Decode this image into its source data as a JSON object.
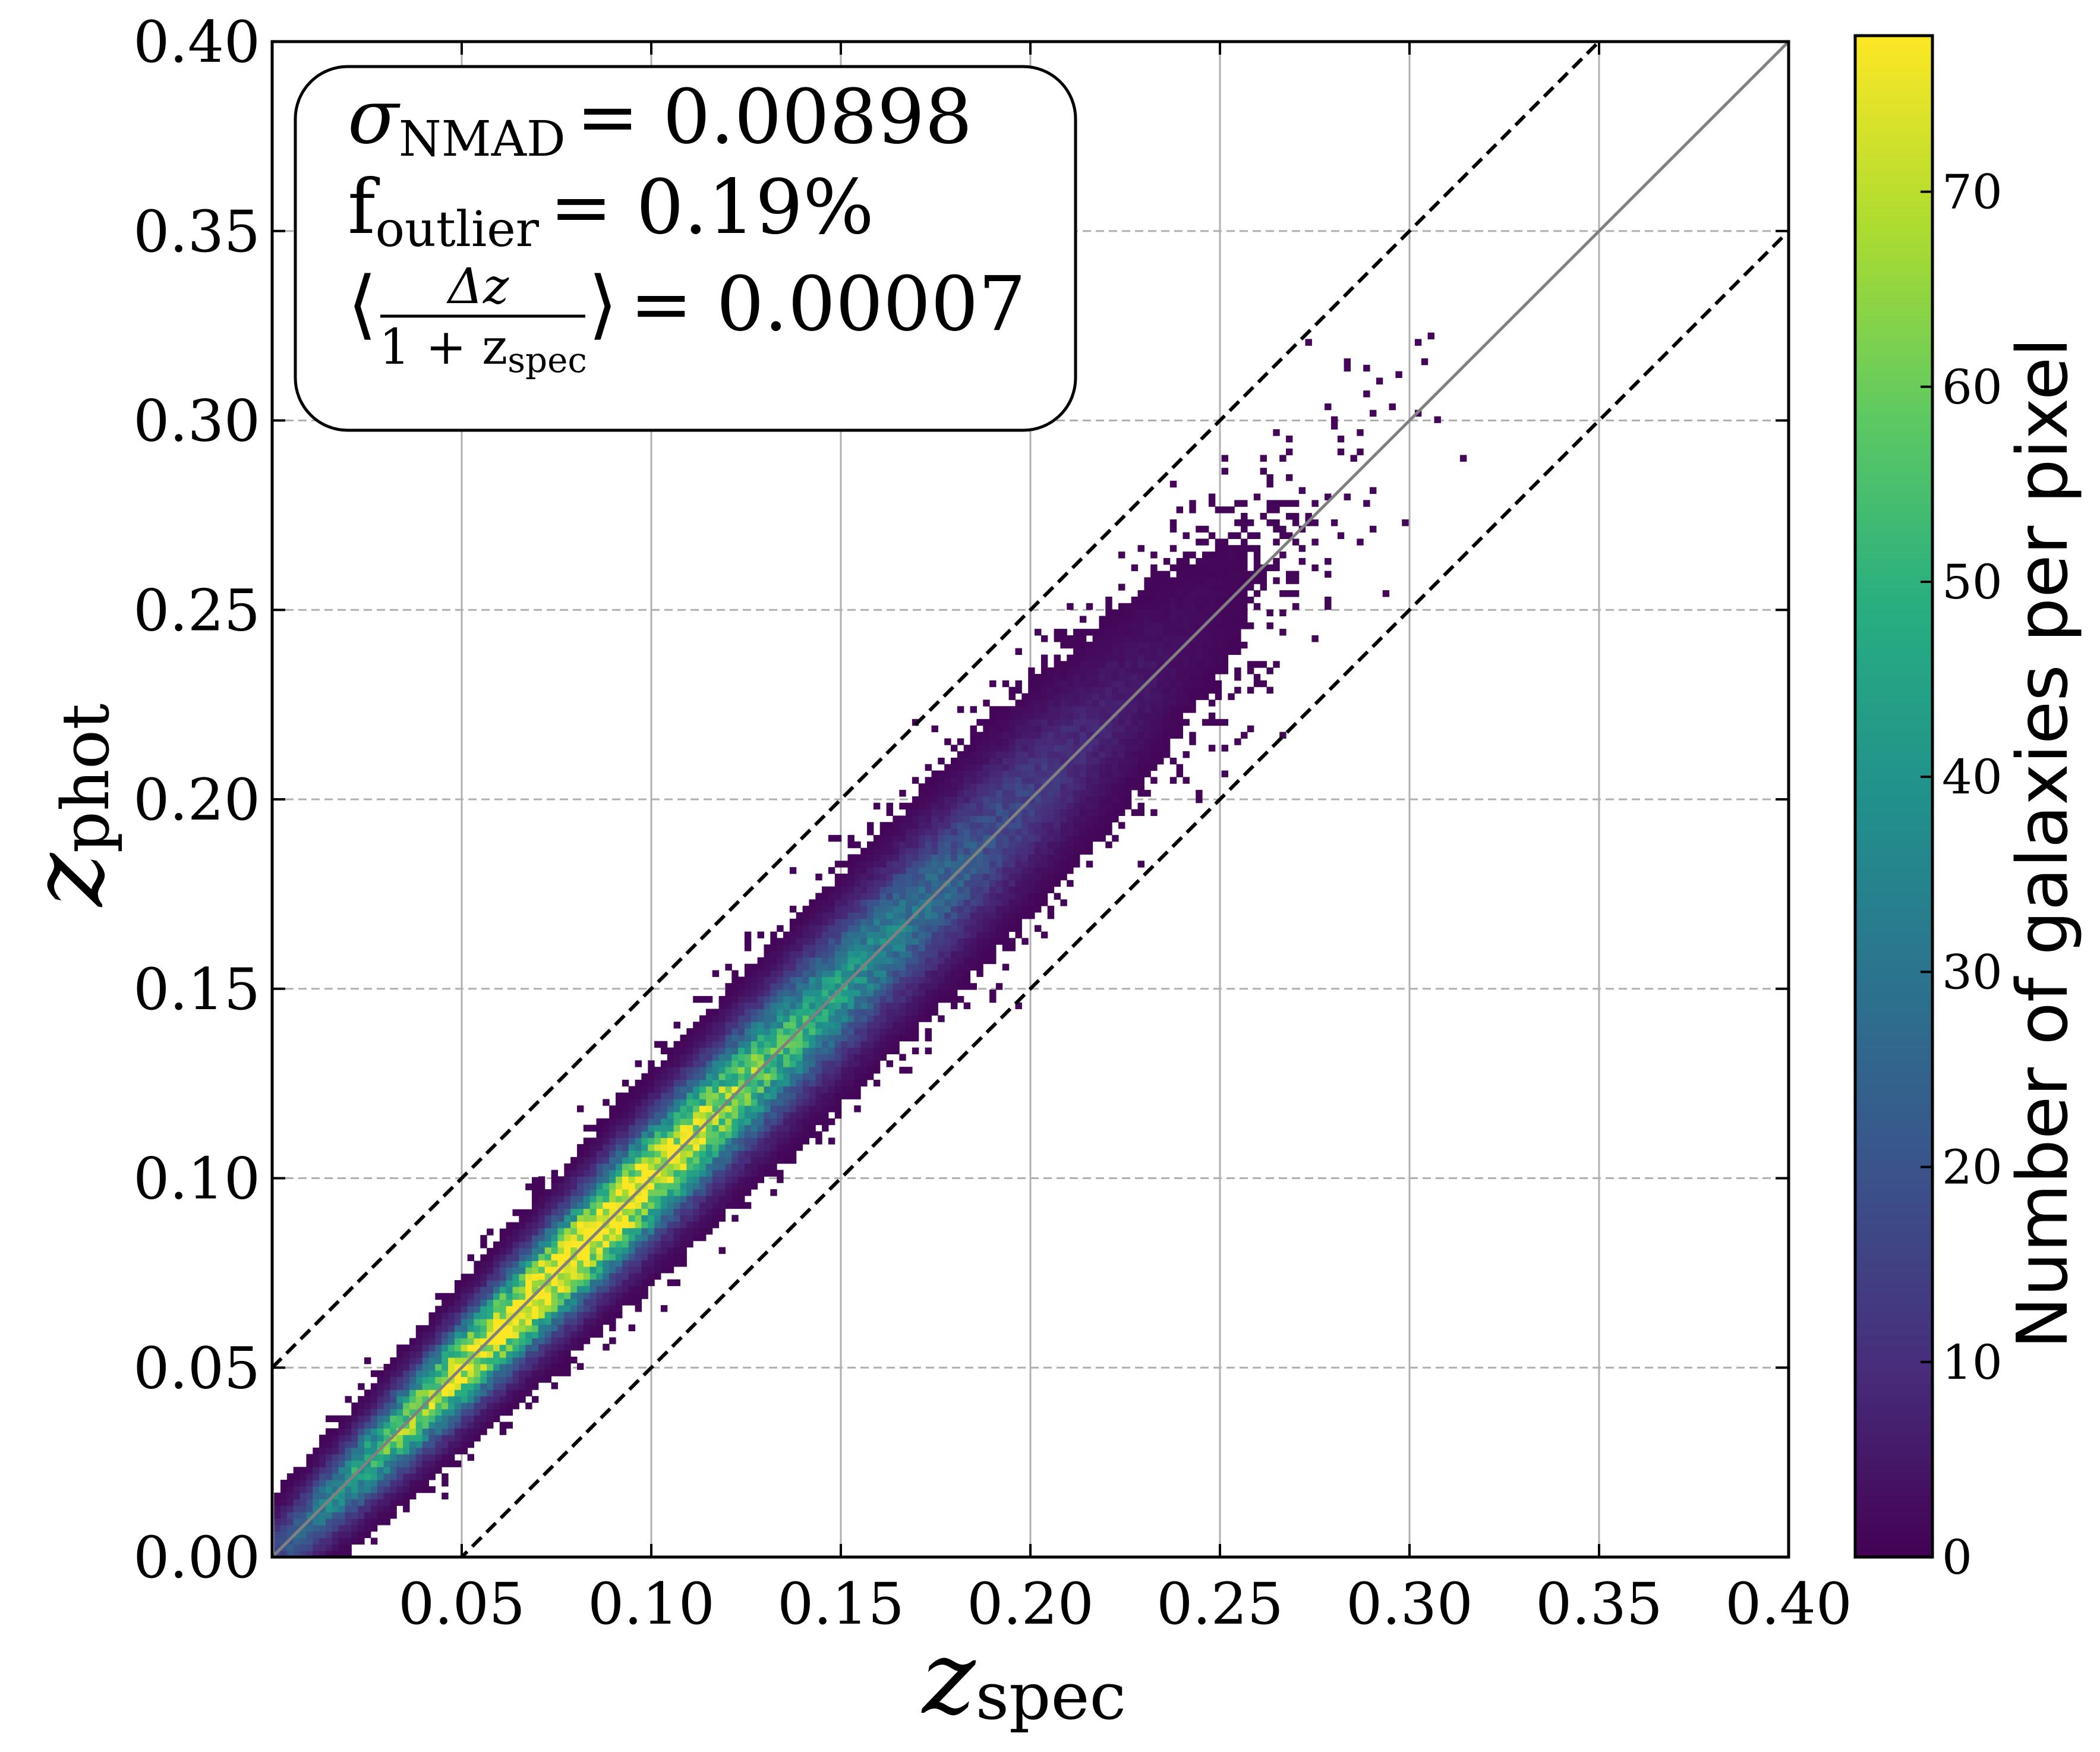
{
  "chart_data": {
    "type": "heatmap",
    "title": "",
    "xlabel": {
      "main": "z",
      "sub": "spec"
    },
    "ylabel": {
      "main": "z",
      "sub": "phot"
    },
    "xlim": [
      0,
      0.4
    ],
    "ylim": [
      0,
      0.4
    ],
    "x_ticks": [
      "0.05",
      "0.10",
      "0.15",
      "0.20",
      "0.25",
      "0.30",
      "0.35",
      "0.40"
    ],
    "y_ticks": [
      "0.00",
      "0.05",
      "0.10",
      "0.15",
      "0.20",
      "0.25",
      "0.30",
      "0.35",
      "0.40"
    ],
    "grid": true,
    "colormap": "viridis",
    "colorbar": {
      "label": "Number of galaxies per pixel",
      "range": [
        0,
        78
      ],
      "ticks": [
        "0",
        "10",
        "20",
        "30",
        "40",
        "50",
        "60",
        "70"
      ]
    },
    "reference_lines": [
      {
        "name": "one-to-one",
        "slope": 1,
        "intercept": 0,
        "style": "solid",
        "color": "#808080"
      },
      {
        "name": "upper-outlier-bound",
        "slope": 1,
        "intercept": 0.05,
        "style": "dashed",
        "color": "#000000"
      },
      {
        "name": "lower-outlier-bound",
        "slope": 1,
        "intercept": -0.05,
        "style": "dashed",
        "color": "#000000"
      }
    ],
    "density_model": {
      "ridge": "z_phot = z_spec",
      "peak_count": 78,
      "peak_at": [
        0.078,
        0.078
      ],
      "scatter": 0.009
    },
    "stats_box": {
      "sigma_nmad": {
        "symbol": "σ",
        "sub": "NMAD",
        "value": "= 0.00898"
      },
      "f_outlier": {
        "symbol": "f",
        "sub": "outlier",
        "value": "= 0.19%"
      },
      "mean_bias": {
        "numerator": "Δz",
        "denominator": "1 + z",
        "den_sub": "spec",
        "value": "= 0.00007"
      }
    },
    "colors": {
      "grid": "#b0b0b0",
      "one_to_one": "#808080",
      "bounds": "#000000"
    }
  }
}
